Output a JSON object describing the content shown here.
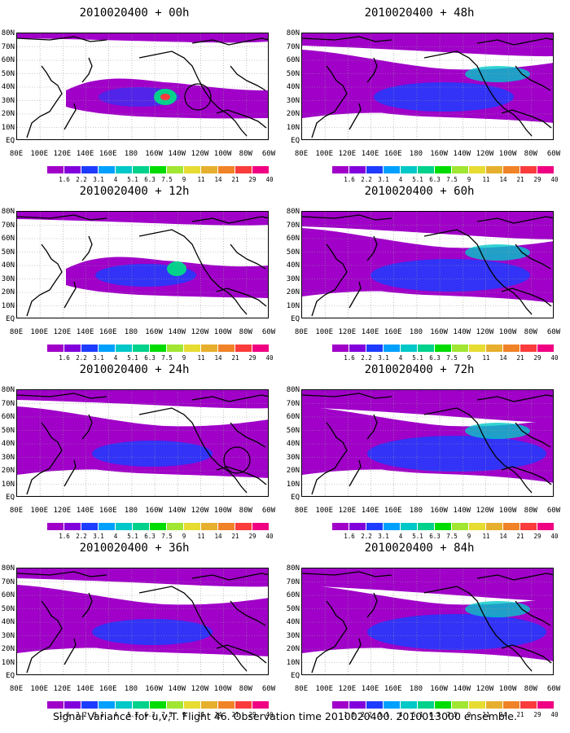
{
  "panels": [
    {
      "title": "2010020400 + 00h",
      "level": 0
    },
    {
      "title": "2010020400 + 48h",
      "level": 3
    },
    {
      "title": "2010020400 + 12h",
      "level": 1
    },
    {
      "title": "2010020400 + 60h",
      "level": 4
    },
    {
      "title": "2010020400 + 24h",
      "level": 2
    },
    {
      "title": "2010020400 + 72h",
      "level": 5
    },
    {
      "title": "2010020400 + 36h",
      "level": 2
    },
    {
      "title": "2010020400 + 84h",
      "level": 5
    }
  ],
  "lat_labels": [
    "80N",
    "70N",
    "60N",
    "50N",
    "40N",
    "30N",
    "20N",
    "10N",
    "EQ"
  ],
  "lon_labels": [
    "80E",
    "100E",
    "120E",
    "140E",
    "160E",
    "180",
    "160W",
    "140W",
    "120W",
    "100W",
    "80W",
    "60W"
  ],
  "colorbar": {
    "colors": [
      "#a000c8",
      "#8200dc",
      "#1e3cff",
      "#00a0ff",
      "#00c8c8",
      "#00d28c",
      "#00dc00",
      "#a0e632",
      "#e6dc32",
      "#e6af2d",
      "#f08228",
      "#fa3c3c",
      "#f00082"
    ],
    "labels": [
      "1.6",
      "2.2",
      "3.1",
      "4",
      "5.1",
      "6.3",
      "7.5",
      "9",
      "11",
      "14",
      "21",
      "29",
      "40"
    ]
  },
  "caption": "Signal Variance for u,v,T. Flight 46. Observation time 2010020400. 2010013000 ensemble."
}
